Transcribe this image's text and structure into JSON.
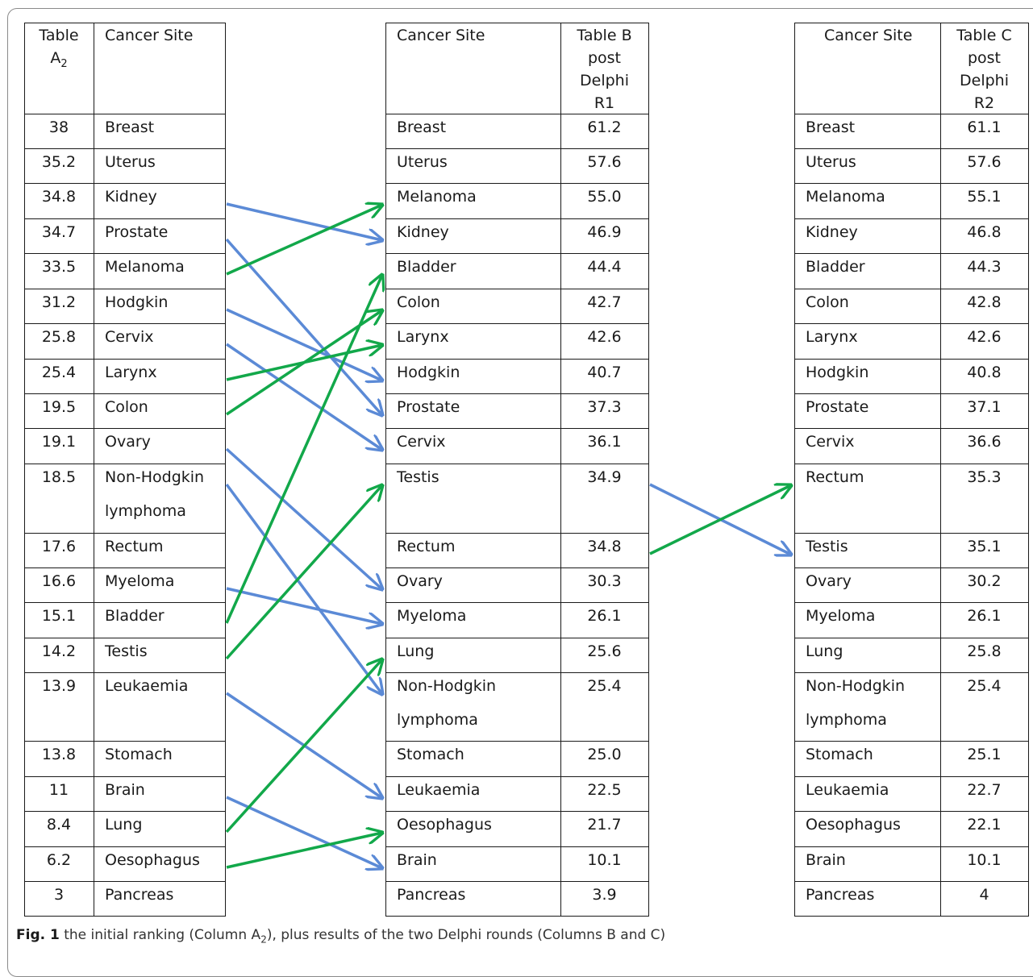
{
  "headers": {
    "a_rank_line1": "Table",
    "a_rank_line2": "A",
    "a_rank_sub": "2",
    "a_site": "Cancer Site",
    "b_site": "Cancer Site",
    "b_score_lines": [
      "Table B",
      "post",
      "Delphi",
      "R1"
    ],
    "c_site": "Cancer Site",
    "c_score_lines": [
      "Table C",
      "post",
      "Delphi",
      "R2"
    ]
  },
  "table_a": [
    {
      "score": "38",
      "site": "Breast"
    },
    {
      "score": "35.2",
      "site": "Uterus"
    },
    {
      "score": "34.8",
      "site": "Kidney"
    },
    {
      "score": "34.7",
      "site": "Prostate"
    },
    {
      "score": "33.5",
      "site": "Melanoma"
    },
    {
      "score": "31.2",
      "site": "Hodgkin"
    },
    {
      "score": "25.8",
      "site": "Cervix"
    },
    {
      "score": "25.4",
      "site": "Larynx"
    },
    {
      "score": "19.5",
      "site": "Colon"
    },
    {
      "score": "19.1",
      "site": "Ovary"
    },
    {
      "score": "18.5",
      "site": "Non-Hodgkin",
      "site2": "lymphoma"
    },
    {
      "score": "17.6",
      "site": "Rectum"
    },
    {
      "score": "16.6",
      "site": "Myeloma"
    },
    {
      "score": "15.1",
      "site": "Bladder"
    },
    {
      "score": "14.2",
      "site": "Testis"
    },
    {
      "score": "13.9",
      "site": "Leukaemia"
    },
    {
      "score": "13.8",
      "site": "Stomach"
    },
    {
      "score": "11",
      "site": "Brain"
    },
    {
      "score": "8.4",
      "site": "Lung"
    },
    {
      "score": "6.2",
      "site": "Oesophagus"
    },
    {
      "score": "3",
      "site": "Pancreas"
    }
  ],
  "table_b": [
    {
      "site": "Breast",
      "score": "61.2"
    },
    {
      "site": "Uterus",
      "score": "57.6"
    },
    {
      "site": "Melanoma",
      "score": "55.0"
    },
    {
      "site": "Kidney",
      "score": "46.9"
    },
    {
      "site": "Bladder",
      "score": "44.4"
    },
    {
      "site": "Colon",
      "score": "42.7"
    },
    {
      "site": "Larynx",
      "score": "42.6"
    },
    {
      "site": "Hodgkin",
      "score": "40.7"
    },
    {
      "site": "Prostate",
      "score": "37.3"
    },
    {
      "site": "Cervix",
      "score": "36.1"
    },
    {
      "site": "Testis",
      "score": "34.9"
    },
    {
      "site": "Rectum",
      "score": "34.8"
    },
    {
      "site": "Ovary",
      "score": "30.3"
    },
    {
      "site": "Myeloma",
      "score": "26.1"
    },
    {
      "site": "Lung",
      "score": "25.6"
    },
    {
      "site": "Non-Hodgkin",
      "site2": "lymphoma",
      "score": "25.4"
    },
    {
      "site": "Stomach",
      "score": "25.0"
    },
    {
      "site": "Leukaemia",
      "score": "22.5"
    },
    {
      "site": "Oesophagus",
      "score": "21.7"
    },
    {
      "site": "Brain",
      "score": "10.1"
    },
    {
      "site": "Pancreas",
      "score": "3.9"
    }
  ],
  "table_c": [
    {
      "site": "Breast",
      "score": "61.1"
    },
    {
      "site": "Uterus",
      "score": "57.6"
    },
    {
      "site": "Melanoma",
      "score": "55.1"
    },
    {
      "site": "Kidney",
      "score": "46.8"
    },
    {
      "site": "Bladder",
      "score": "44.3"
    },
    {
      "site": "Colon",
      "score": "42.8"
    },
    {
      "site": "Larynx",
      "score": "42.6"
    },
    {
      "site": "Hodgkin",
      "score": "40.8"
    },
    {
      "site": "Prostate",
      "score": "37.1"
    },
    {
      "site": "Cervix",
      "score": "36.6"
    },
    {
      "site": "Rectum",
      "score": "35.3"
    },
    {
      "site": "Testis",
      "score": "35.1"
    },
    {
      "site": "Ovary",
      "score": "30.2"
    },
    {
      "site": "Myeloma",
      "score": "26.1"
    },
    {
      "site": "Lung",
      "score": "25.8"
    },
    {
      "site": "Non-Hodgkin",
      "site2": "lymphoma",
      "score": "25.4"
    },
    {
      "site": "Stomach",
      "score": "25.1"
    },
    {
      "site": "Leukaemia",
      "score": "22.7"
    },
    {
      "site": "Oesophagus",
      "score": "22.1"
    },
    {
      "site": "Brain",
      "score": "10.1"
    },
    {
      "site": "Pancreas",
      "score": "4"
    }
  ],
  "arrows_a_to_b": [
    {
      "from": 2,
      "to": 3,
      "color": "blue"
    },
    {
      "from": 3,
      "to": 8,
      "color": "blue"
    },
    {
      "from": 4,
      "to": 2,
      "color": "green"
    },
    {
      "from": 5,
      "to": 7,
      "color": "blue"
    },
    {
      "from": 6,
      "to": 9,
      "color": "blue"
    },
    {
      "from": 7,
      "to": 6,
      "color": "green"
    },
    {
      "from": 8,
      "to": 5,
      "color": "green"
    },
    {
      "from": 9,
      "to": 12,
      "color": "blue"
    },
    {
      "from": 10,
      "to": 15,
      "color": "blue"
    },
    {
      "from": 12,
      "to": 13,
      "color": "blue"
    },
    {
      "from": 13,
      "to": 4,
      "color": "green"
    },
    {
      "from": 14,
      "to": 10,
      "color": "green"
    },
    {
      "from": 15,
      "to": 17,
      "color": "blue"
    },
    {
      "from": 17,
      "to": 19,
      "color": "blue"
    },
    {
      "from": 18,
      "to": 14,
      "color": "green"
    },
    {
      "from": 19,
      "to": 18,
      "color": "green"
    }
  ],
  "arrows_b_to_c": [
    {
      "from": 10,
      "to": 11,
      "color": "blue"
    },
    {
      "from": 11,
      "to": 10,
      "color": "green"
    }
  ],
  "colors": {
    "blue": "#5b8ad6",
    "green": "#12a84a"
  },
  "caption": {
    "label": "Fig. 1",
    "text_before": " the initial ranking (Column A",
    "sub": "2",
    "text_after": "), plus results of the two Delphi rounds (Columns B and C)"
  }
}
